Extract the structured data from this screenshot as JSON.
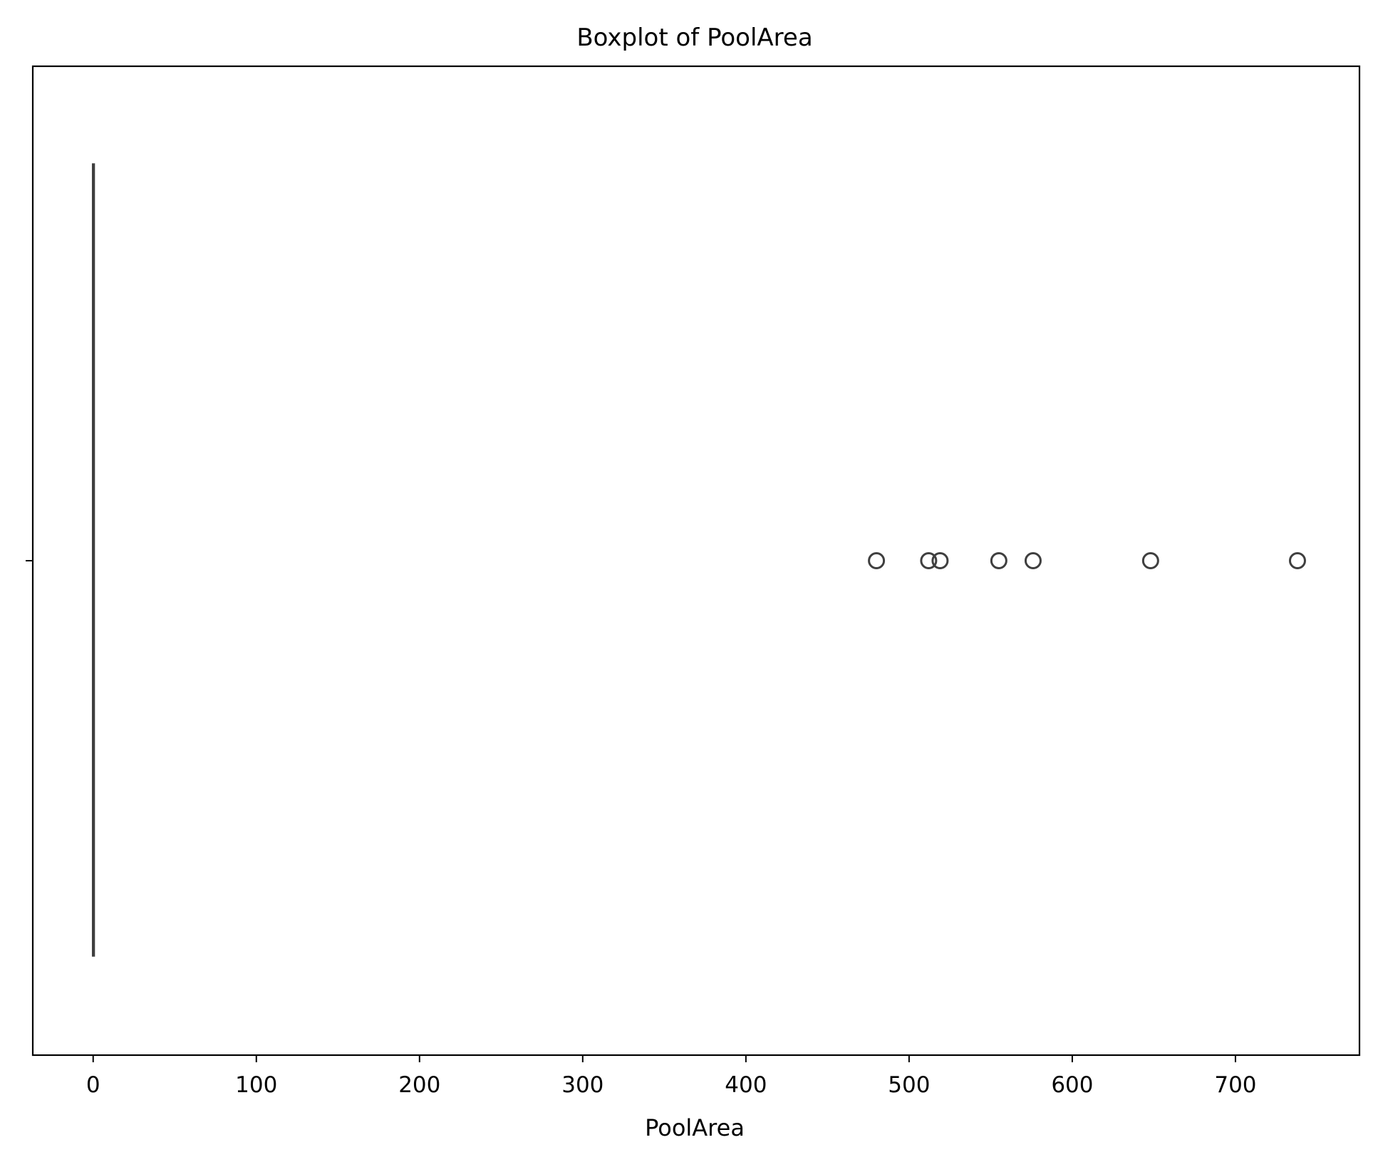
{
  "chart_data": {
    "type": "boxplot",
    "orientation": "horizontal",
    "title": "Boxplot of PoolArea",
    "xlabel": "PoolArea",
    "ylabel": "",
    "xlim": [
      -37,
      776
    ],
    "xticks": [
      0,
      100,
      200,
      300,
      400,
      500,
      600,
      700
    ],
    "xtick_labels": [
      "0",
      "100",
      "200",
      "300",
      "400",
      "500",
      "600",
      "700"
    ],
    "grid": false,
    "series": [
      {
        "stats": {
          "min": 0,
          "q1": 0,
          "median": 0,
          "q3": 0,
          "max": 0
        },
        "outliers": [
          480,
          512,
          519,
          555,
          576,
          648,
          738
        ]
      }
    ],
    "colors": {
      "box": "#3f3f3f",
      "outlier_edge": "#3f3f3f",
      "axes": "#000000"
    }
  }
}
